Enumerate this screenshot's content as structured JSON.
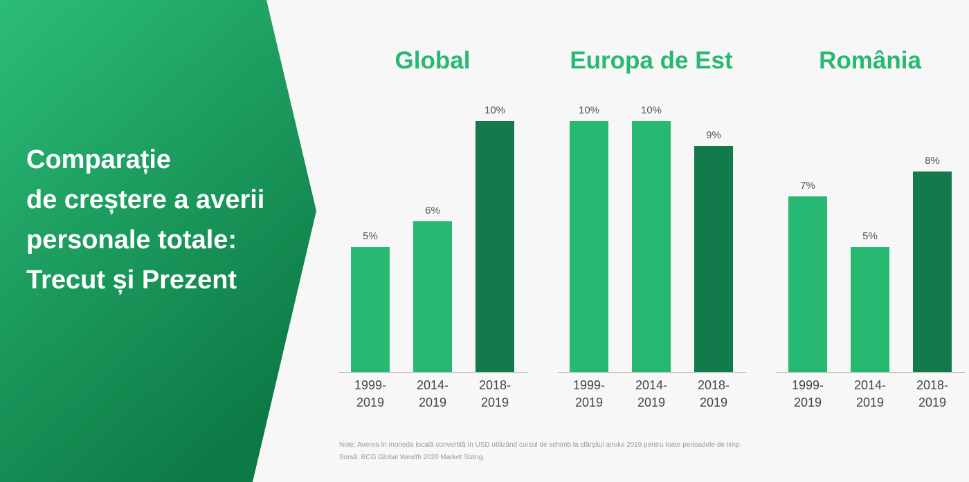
{
  "title_lines": [
    "Comparație",
    "de creștere a averii",
    "personale totale:",
    "Trecut și Prezent"
  ],
  "notes": [
    "Note: Averea în moneda locală convertită în USD utilizând cursul de schimb la sfârșitul anului 2019 pentru toate perioadele de timp.",
    "Sursă: BCG Global Wealth 2020 Market Sizing."
  ],
  "chart_data": [
    {
      "type": "bar",
      "title": "Global",
      "categories": [
        "1999-2019",
        "2014-2019",
        "2018-2019"
      ],
      "values": [
        5,
        6,
        10
      ],
      "value_labels": [
        "5%",
        "6%",
        "10%"
      ],
      "colors": [
        "#27b872",
        "#27b872",
        "#137a4b"
      ]
    },
    {
      "type": "bar",
      "title": "Europa de Est",
      "categories": [
        "1999-2019",
        "2014-2019",
        "2018-2019"
      ],
      "values": [
        10,
        10,
        9
      ],
      "value_labels": [
        "10%",
        "10%",
        "9%"
      ],
      "colors": [
        "#27b872",
        "#27b872",
        "#137a4b"
      ]
    },
    {
      "type": "bar",
      "title": "România",
      "categories": [
        "1999-2019",
        "2014-2019",
        "2018-2019"
      ],
      "values": [
        7,
        5,
        8
      ],
      "value_labels": [
        "7%",
        "5%",
        "8%"
      ],
      "colors": [
        "#27b872",
        "#27b872",
        "#137a4b"
      ]
    }
  ]
}
